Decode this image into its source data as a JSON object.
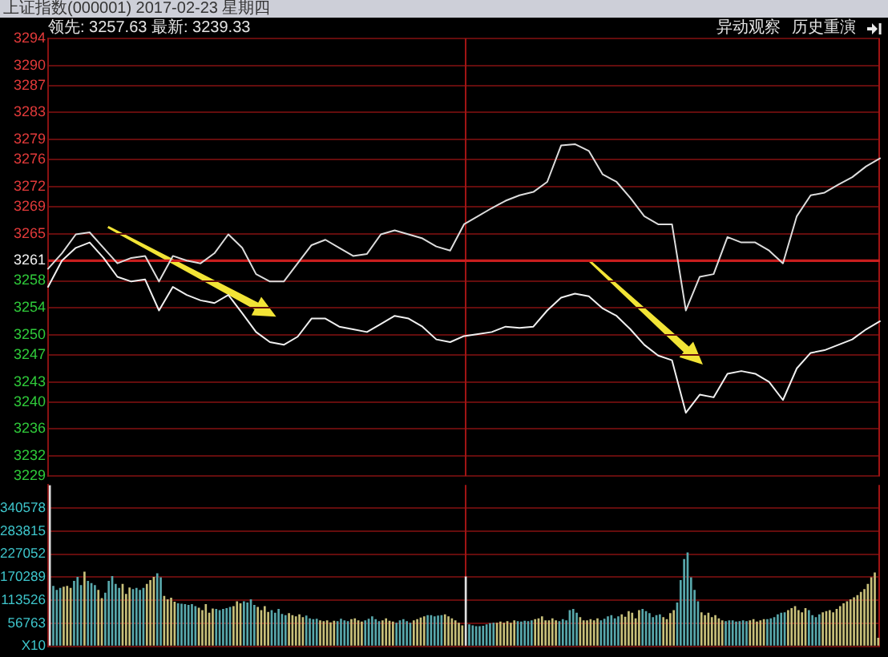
{
  "chart_data": [
    {
      "type": "line",
      "title": "上证指数(000001) 2017-02-23 星期四",
      "subtitle": "领先: 3257.63 最新: 3239.33",
      "annotations": [
        "异动观察",
        "历史重演"
      ],
      "categories": [
        null,
        null,
        null,
        null,
        null,
        null,
        null,
        null,
        null,
        null,
        null,
        null,
        null,
        null,
        null,
        null,
        null,
        null,
        null,
        null,
        null,
        null,
        null,
        null,
        null,
        null,
        null,
        null,
        null,
        null,
        null,
        null,
        null,
        null,
        null,
        null,
        null,
        null,
        null,
        null,
        null,
        null,
        null,
        null,
        null,
        null,
        null,
        null,
        null,
        null,
        null,
        null,
        null,
        null,
        null,
        null,
        null,
        null,
        null,
        null,
        null
      ],
      "series": [
        {
          "color": "#dcdcdc",
          "values": [
            3259.8,
            3262.1,
            3264.9,
            3265.2,
            3262.9,
            3260.6,
            3261.4,
            3261.7,
            3257.9,
            3261.7,
            3261.0,
            3260.6,
            3262.1,
            3264.9,
            3262.9,
            3259.0,
            3257.9,
            3257.9,
            3260.6,
            3263.3,
            3264.1,
            3262.9,
            3261.7,
            3262.0,
            3264.9,
            3265.5,
            3264.9,
            3264.3,
            3263.1,
            3262.5,
            3266.4,
            3267.6,
            3268.8,
            3269.9,
            3270.7,
            3271.2,
            3272.7,
            3278.1,
            3278.3,
            3277.3,
            3273.8,
            3272.7,
            3270.3,
            3267.6,
            3266.4,
            3266.4,
            3253.6,
            3258.6,
            3259.0,
            3264.5,
            3263.7,
            3263.7,
            3262.5,
            3260.6,
            3267.6,
            3270.7,
            3271.1,
            3272.3,
            3273.4,
            3275.0,
            3276.2
          ]
        },
        {
          "color": "#f0f0f0",
          "values": [
            3257.1,
            3261.0,
            3262.9,
            3263.7,
            3261.4,
            3258.6,
            3257.9,
            3258.2,
            3253.6,
            3257.1,
            3255.9,
            3255.1,
            3254.7,
            3255.9,
            3253.2,
            3250.4,
            3248.9,
            3248.5,
            3249.7,
            3252.4,
            3252.4,
            3251.2,
            3250.8,
            3250.4,
            3251.6,
            3252.8,
            3252.4,
            3251.2,
            3249.3,
            3248.9,
            3249.8,
            3250.1,
            3250.4,
            3251.2,
            3251.0,
            3251.2,
            3253.6,
            3255.5,
            3256.1,
            3255.7,
            3253.9,
            3252.8,
            3250.8,
            3248.5,
            3246.9,
            3246.2,
            3238.4,
            3241.1,
            3240.7,
            3244.2,
            3244.6,
            3244.2,
            3243.0,
            3240.3,
            3245.0,
            3247.3,
            3247.7,
            3248.5,
            3249.3,
            3250.8,
            3252.0
          ]
        }
      ],
      "ylim": [
        3229,
        3294
      ],
      "yticks": [
        3229,
        3232,
        3236,
        3240,
        3243,
        3247,
        3250,
        3254,
        3258,
        3261,
        3265,
        3269,
        3272,
        3276,
        3279,
        3283,
        3287,
        3290,
        3294
      ],
      "ref_lines": [
        {
          "axis": "y",
          "value": 3261,
          "color": "#c81e1e"
        }
      ],
      "grid": "y",
      "tick_labels": "y"
    },
    {
      "type": "bar",
      "categories": [
        null,
        null,
        null,
        null,
        null,
        null,
        null,
        null,
        null,
        null,
        null,
        null,
        null,
        null,
        null,
        null,
        null,
        null,
        null,
        null,
        null,
        null,
        null,
        null,
        null,
        null,
        null,
        null,
        null,
        null,
        null,
        null,
        null,
        null,
        null,
        null,
        null,
        null,
        null,
        null,
        null,
        null,
        null,
        null,
        null,
        null,
        null,
        null,
        null,
        null,
        null,
        null,
        null,
        null,
        null,
        null,
        null,
        null,
        null,
        null,
        null,
        null,
        null,
        null,
        null,
        null,
        null,
        null,
        null,
        null,
        null,
        null,
        null,
        null,
        null,
        null,
        null,
        null,
        null,
        null,
        null,
        null,
        null,
        null,
        null,
        null,
        null,
        null,
        null,
        null,
        null,
        null,
        null,
        null,
        null,
        null,
        null,
        null,
        null,
        null,
        null,
        null,
        null,
        null,
        null,
        null,
        null,
        null,
        null,
        null,
        null,
        null,
        null,
        null,
        null,
        null,
        null,
        null,
        null,
        null,
        null,
        null,
        null,
        null,
        null,
        null,
        null,
        null,
        null,
        null,
        null,
        null,
        null,
        null,
        null,
        null,
        null,
        null,
        null,
        null,
        null,
        null,
        null,
        null,
        null,
        null,
        null,
        null,
        null,
        null,
        null,
        null,
        null,
        null,
        null,
        null,
        null,
        null,
        null,
        null,
        null,
        null,
        null,
        null,
        null,
        null,
        null,
        null,
        null,
        null,
        null,
        null,
        null,
        null,
        null,
        null,
        null,
        null,
        null,
        null,
        null,
        null,
        null,
        null,
        null,
        null,
        null,
        null,
        null,
        null,
        null,
        null,
        null,
        null,
        null,
        null,
        null,
        null,
        null,
        null,
        null,
        null,
        null,
        null,
        null,
        null,
        null,
        null,
        null,
        null,
        null,
        null,
        null,
        null,
        null,
        null,
        null,
        null,
        null,
        null,
        null,
        null,
        null,
        null,
        null,
        null,
        null,
        null,
        null,
        null,
        null,
        null,
        null,
        null,
        null,
        null,
        null,
        null,
        null,
        null
      ],
      "values": [
        397000,
        149000,
        139000,
        144000,
        147000,
        149000,
        144000,
        161000,
        171000,
        151000,
        184000,
        161000,
        156000,
        151000,
        139000,
        119000,
        132000,
        161000,
        173000,
        154000,
        144000,
        154000,
        129000,
        145000,
        141000,
        144000,
        139000,
        144000,
        154000,
        163000,
        171000,
        180000,
        170000,
        124000,
        116000,
        120000,
        110000,
        106000,
        105000,
        104000,
        102000,
        104000,
        99000,
        95000,
        89000,
        104000,
        83000,
        93000,
        92000,
        89000,
        92000,
        94000,
        97000,
        99000,
        111000,
        106000,
        111000,
        108000,
        116000,
        102000,
        97000,
        89000,
        99000,
        85000,
        89000,
        83000,
        92000,
        80000,
        77000,
        82000,
        77000,
        74000,
        79000,
        72000,
        76000,
        69000,
        67000,
        68000,
        64000,
        62000,
        64000,
        59000,
        63000,
        62000,
        68000,
        64000,
        62000,
        67000,
        69000,
        64000,
        61000,
        64000,
        68000,
        74000,
        67000,
        62000,
        64000,
        69000,
        63000,
        61000,
        58000,
        64000,
        67000,
        62000,
        58000,
        64000,
        67000,
        71000,
        74000,
        77000,
        77000,
        74000,
        76000,
        77000,
        79000,
        74000,
        69000,
        64000,
        58000,
        52000,
        172000,
        54000,
        52000,
        50000,
        50000,
        51000,
        54000,
        57000,
        58000,
        58000,
        61000,
        58000,
        62000,
        58000,
        64000,
        62000,
        61000,
        63000,
        62000,
        64000,
        67000,
        69000,
        74000,
        64000,
        64000,
        69000,
        64000,
        62000,
        67000,
        64000,
        89000,
        92000,
        83000,
        72000,
        64000,
        64000,
        67000,
        64000,
        69000,
        64000,
        68000,
        74000,
        77000,
        69000,
        74000,
        79000,
        73000,
        87000,
        83000,
        69000,
        89000,
        92000,
        87000,
        82000,
        72000,
        77000,
        79000,
        72000,
        67000,
        82000,
        89000,
        108000,
        163000,
        215000,
        231000,
        170000,
        139000,
        111000,
        84000,
        77000,
        83000,
        72000,
        77000,
        69000,
        64000,
        62000,
        64000,
        64000,
        61000,
        62000,
        64000,
        62000,
        64000,
        67000,
        61000,
        64000,
        67000,
        67000,
        69000,
        72000,
        79000,
        83000,
        84000,
        89000,
        94000,
        99000,
        89000,
        84000,
        94000,
        89000,
        77000,
        72000,
        79000,
        84000,
        87000,
        89000,
        84000,
        92000,
        99000,
        106000,
        111000,
        116000,
        121000,
        126000,
        134000,
        141000,
        154000,
        170000,
        182000,
        21000
      ],
      "colors": [
        "#e0e0e0",
        "#58a8ac",
        "#58a8ac",
        "#58a8ac",
        "#c8c07a",
        "#c8c07a",
        "#c8c07a",
        "#58a8ac",
        "#58a8ac",
        "#58a8ac",
        "#c8c07a",
        "#58a8ac",
        "#58a8ac",
        "#58a8ac",
        "#c8c07a",
        "#c8c07a",
        "#58a8ac",
        "#58a8ac",
        "#58a8ac",
        "#58a8ac",
        "#58a8ac",
        "#c8c07a",
        "#c8c07a",
        "#c8c07a",
        "#58a8ac",
        "#58a8ac",
        "#58a8ac",
        "#58a8ac",
        "#c8c07a",
        "#c8c07a",
        "#c8c07a",
        "#58a8ac",
        "#58a8ac",
        "#c8c07a",
        "#c8c07a",
        "#c8c07a",
        "#c8c07a",
        "#58a8ac",
        "#58a8ac",
        "#58a8ac",
        "#58a8ac",
        "#58a8ac",
        "#58a8ac",
        "#c8c07a",
        "#c8c07a",
        "#c8c07a",
        "#c8c07a",
        "#c8c07a",
        "#58a8ac",
        "#58a8ac",
        "#58a8ac",
        "#58a8ac",
        "#58a8ac",
        "#c8c07a",
        "#c8c07a",
        "#c8c07a",
        "#58a8ac",
        "#58a8ac",
        "#58a8ac",
        "#58a8ac",
        "#c8c07a",
        "#c8c07a",
        "#c8c07a",
        "#c8c07a",
        "#58a8ac",
        "#58a8ac",
        "#58a8ac",
        "#58a8ac",
        "#58a8ac",
        "#c8c07a",
        "#c8c07a",
        "#c8c07a",
        "#c8c07a",
        "#c8c07a",
        "#58a8ac",
        "#58a8ac",
        "#58a8ac",
        "#58a8ac",
        "#c8c07a",
        "#c8c07a",
        "#c8c07a",
        "#c8c07a",
        "#c8c07a",
        "#58a8ac",
        "#58a8ac",
        "#58a8ac",
        "#58a8ac",
        "#c8c07a",
        "#c8c07a",
        "#c8c07a",
        "#c8c07a",
        "#58a8ac",
        "#58a8ac",
        "#58a8ac",
        "#58a8ac",
        "#58a8ac",
        "#c8c07a",
        "#c8c07a",
        "#c8c07a",
        "#c8c07a",
        "#58a8ac",
        "#58a8ac",
        "#58a8ac",
        "#58a8ac",
        "#58a8ac",
        "#c8c07a",
        "#c8c07a",
        "#c8c07a",
        "#c8c07a",
        "#58a8ac",
        "#58a8ac",
        "#58a8ac",
        "#58a8ac",
        "#58a8ac",
        "#c8c07a",
        "#c8c07a",
        "#c8c07a",
        "#c8c07a",
        "#c8c07a",
        "#c8c07a",
        "#e0e0e0",
        "#58a8ac",
        "#58a8ac",
        "#58a8ac",
        "#58a8ac",
        "#58a8ac",
        "#58a8ac",
        "#58a8ac",
        "#58a8ac",
        "#c8c07a",
        "#c8c07a",
        "#c8c07a",
        "#c8c07a",
        "#c8c07a",
        "#c8c07a",
        "#58a8ac",
        "#58a8ac",
        "#58a8ac",
        "#58a8ac",
        "#58a8ac",
        "#c8c07a",
        "#c8c07a",
        "#c8c07a",
        "#c8c07a",
        "#c8c07a",
        "#c8c07a",
        "#c8c07a",
        "#58a8ac",
        "#58a8ac",
        "#58a8ac",
        "#58a8ac",
        "#58a8ac",
        "#58a8ac",
        "#c8c07a",
        "#c8c07a",
        "#c8c07a",
        "#c8c07a",
        "#c8c07a",
        "#c8c07a",
        "#58a8ac",
        "#58a8ac",
        "#58a8ac",
        "#58a8ac",
        "#58a8ac",
        "#58a8ac",
        "#c8c07a",
        "#c8c07a",
        "#c8c07a",
        "#c8c07a",
        "#c8c07a",
        "#c8c07a",
        "#58a8ac",
        "#58a8ac",
        "#58a8ac",
        "#58a8ac",
        "#58a8ac",
        "#58a8ac",
        "#c8c07a",
        "#c8c07a",
        "#c8c07a",
        "#c8c07a",
        "#58a8ac",
        "#58a8ac",
        "#58a8ac",
        "#58a8ac",
        "#58a8ac",
        "#58a8ac",
        "#58a8ac",
        "#c8c07a",
        "#c8c07a",
        "#c8c07a",
        "#c8c07a",
        "#c8c07a",
        "#c8c07a",
        "#c8c07a",
        "#58a8ac",
        "#58a8ac",
        "#58a8ac",
        "#58a8ac",
        "#58a8ac",
        "#58a8ac",
        "#58a8ac",
        "#c8c07a",
        "#c8c07a",
        "#c8c07a",
        "#c8c07a",
        "#c8c07a",
        "#58a8ac",
        "#58a8ac",
        "#58a8ac",
        "#58a8ac",
        "#58a8ac",
        "#58a8ac",
        "#c8c07a",
        "#c8c07a",
        "#c8c07a",
        "#c8c07a",
        "#c8c07a",
        "#c8c07a",
        "#58a8ac",
        "#58a8ac",
        "#58a8ac",
        "#58a8ac",
        "#c8c07a",
        "#c8c07a",
        "#c8c07a",
        "#c8c07a",
        "#c8c07a",
        "#c8c07a",
        "#c8c07a",
        "#c8c07a",
        "#c8c07a",
        "#c8c07a",
        "#c8c07a",
        "#c8c07a",
        "#c8c07a",
        "#c8c07a",
        "#c8c07a",
        "#c8c07a",
        "#c8c07a"
      ],
      "ylim": [
        0,
        397341
      ],
      "yticks": [
        {
          "value": 0,
          "label": "X10"
        },
        56763,
        113526,
        170289,
        227052,
        283815,
        340578
      ],
      "grid": "y",
      "tick_labels": "y"
    }
  ]
}
